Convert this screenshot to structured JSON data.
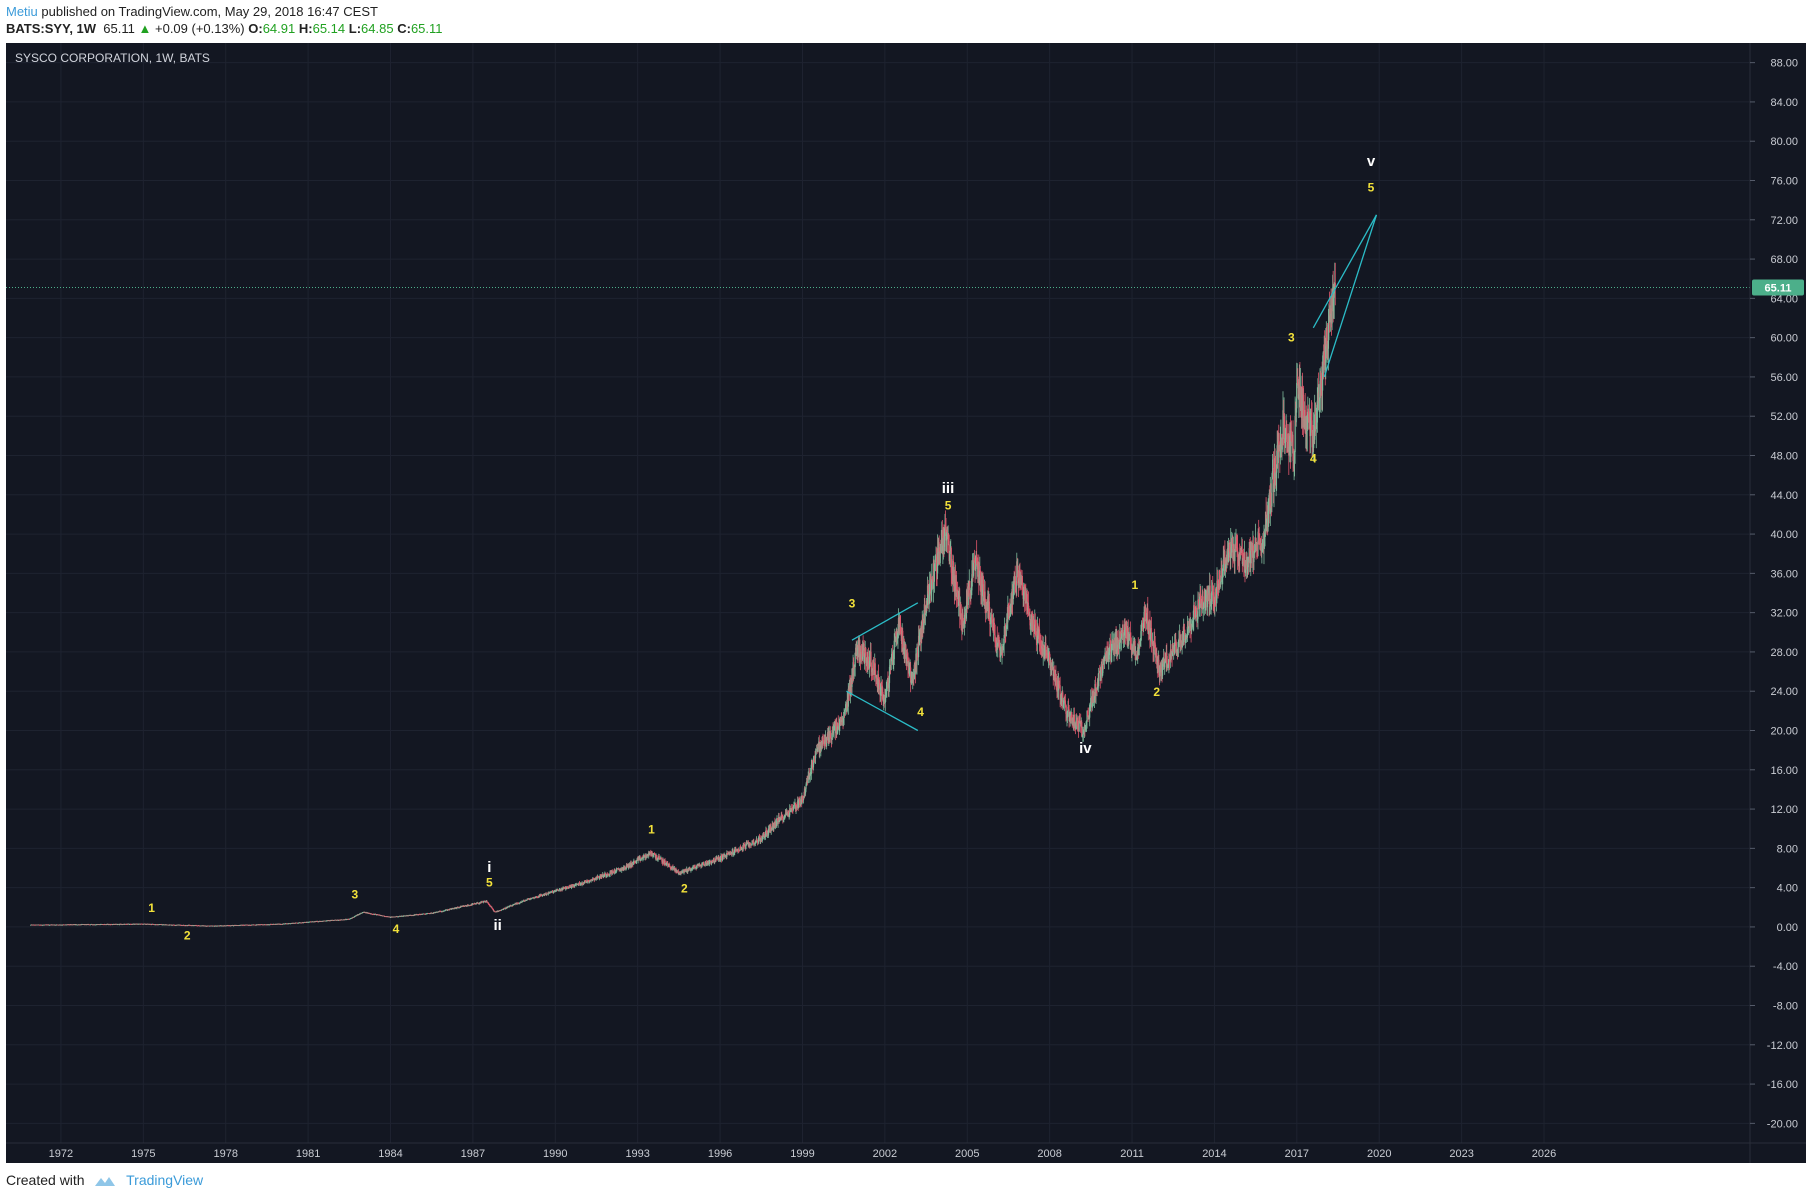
{
  "header": {
    "author": "Metiu",
    "published_text": "published on TradingView.com, May 29, 2018 16:47 CEST",
    "symbol": "BATS:SYY, 1W",
    "last": "65.11",
    "change": "+0.09 (+0.13%)",
    "open_label": "O:",
    "open": "64.91",
    "high_label": "H:",
    "high": "65.14",
    "low_label": "L:",
    "low": "64.85",
    "close_label": "C:",
    "close": "65.11"
  },
  "footer": {
    "created_with": "Created with",
    "brand": "TradingView"
  },
  "colors": {
    "background": "#131722",
    "grid": "#1e2330",
    "axis_text": "#c9ccd3",
    "up": "#7fb99a",
    "down": "#e0576b",
    "wave_minor": "#f2e13a",
    "wave_major": "#ffffff",
    "trendline": "#2bbcc7",
    "last_price": "#4caf8a"
  },
  "chart_data": {
    "type": "candlestick",
    "title": "SYSCO CORPORATION, 1W, BATS",
    "xlim": [
      1970.0,
      2033.5
    ],
    "ylim": [
      -22,
      90
    ],
    "y_ticks": [
      88,
      84,
      80,
      76,
      72,
      68,
      64,
      60,
      56,
      52,
      48,
      44,
      40,
      36,
      32,
      28,
      24,
      20,
      16,
      12,
      8,
      4,
      0,
      -4,
      -8,
      -12,
      -16,
      -20
    ],
    "x_ticks": [
      "1972",
      "1975",
      "1978",
      "1981",
      "1984",
      "1987",
      "1990",
      "1993",
      "1996",
      "1999",
      "2002",
      "2005",
      "2008",
      "2011",
      "2014",
      "2017",
      "2020",
      "2023",
      "2026"
    ],
    "last_price": 65.11,
    "last_price_label": "65.11",
    "price_path": [
      [
        1970.9,
        0.2
      ],
      [
        1975.0,
        0.3
      ],
      [
        1977.5,
        0.1
      ],
      [
        1980.0,
        0.3
      ],
      [
        1982.5,
        0.8
      ],
      [
        1983.0,
        1.5
      ],
      [
        1984.0,
        1.0
      ],
      [
        1985.5,
        1.4
      ],
      [
        1986.5,
        2.0
      ],
      [
        1987.5,
        2.6
      ],
      [
        1987.8,
        1.5
      ],
      [
        1989.0,
        2.8
      ],
      [
        1991.0,
        4.5
      ],
      [
        1992.5,
        6.0
      ],
      [
        1993.5,
        7.5
      ],
      [
        1994.5,
        5.5
      ],
      [
        1996.0,
        7.0
      ],
      [
        1997.5,
        9.0
      ],
      [
        1998.0,
        10.5
      ],
      [
        1999.0,
        13.0
      ],
      [
        1999.5,
        18.0
      ],
      [
        2000.5,
        21.0
      ],
      [
        2001.0,
        28.5
      ],
      [
        2001.5,
        27.0
      ],
      [
        2002.0,
        23.0
      ],
      [
        2002.5,
        31.0
      ],
      [
        2003.0,
        25.0
      ],
      [
        2003.5,
        33.0
      ],
      [
        2004.2,
        40.5
      ],
      [
        2004.8,
        31.0
      ],
      [
        2005.3,
        37.0
      ],
      [
        2006.2,
        28.0
      ],
      [
        2006.8,
        36.0
      ],
      [
        2007.5,
        30.0
      ],
      [
        2008.0,
        27.0
      ],
      [
        2008.6,
        22.0
      ],
      [
        2009.2,
        20.0
      ],
      [
        2010.0,
        27.0
      ],
      [
        2010.7,
        30.0
      ],
      [
        2011.2,
        28.0
      ],
      [
        2011.5,
        32.0
      ],
      [
        2012.0,
        26.0
      ],
      [
        2012.5,
        28.0
      ],
      [
        2013.5,
        33.0
      ],
      [
        2014.0,
        34.0
      ],
      [
        2014.6,
        39.0
      ],
      [
        2015.2,
        37.0
      ],
      [
        2015.8,
        40.0
      ],
      [
        2016.5,
        51.0
      ],
      [
        2016.9,
        48.0
      ],
      [
        2017.0,
        56.0
      ],
      [
        2017.3,
        52.0
      ],
      [
        2017.6,
        50.0
      ],
      [
        2017.9,
        56.0
      ],
      [
        2018.2,
        62.0
      ],
      [
        2018.4,
        65.11
      ]
    ],
    "wave_labels": [
      {
        "text": "1",
        "x": 1975.3,
        "y": 1.5,
        "level": "minor"
      },
      {
        "text": "2",
        "x": 1976.6,
        "y": -1.3,
        "level": "minor"
      },
      {
        "text": "3",
        "x": 1982.7,
        "y": 2.9,
        "level": "minor"
      },
      {
        "text": "4",
        "x": 1984.2,
        "y": -0.6,
        "level": "minor"
      },
      {
        "text": "5",
        "x": 1987.6,
        "y": 4.1,
        "level": "minor"
      },
      {
        "text": "i",
        "x": 1987.6,
        "y": 5.6,
        "level": "major"
      },
      {
        "text": "ii",
        "x": 1987.9,
        "y": -0.3,
        "level": "major"
      },
      {
        "text": "1",
        "x": 1993.5,
        "y": 9.5,
        "level": "minor"
      },
      {
        "text": "2",
        "x": 1994.7,
        "y": 3.5,
        "level": "minor"
      },
      {
        "text": "3",
        "x": 2000.8,
        "y": 32.5,
        "level": "minor"
      },
      {
        "text": "4",
        "x": 2003.3,
        "y": 21.5,
        "level": "minor"
      },
      {
        "text": "5",
        "x": 2004.3,
        "y": 42.5,
        "level": "minor"
      },
      {
        "text": "iii",
        "x": 2004.3,
        "y": 44.2,
        "level": "major"
      },
      {
        "text": "iv",
        "x": 2009.3,
        "y": 17.7,
        "level": "major"
      },
      {
        "text": "1",
        "x": 2011.1,
        "y": 34.4,
        "level": "minor"
      },
      {
        "text": "2",
        "x": 2011.9,
        "y": 23.5,
        "level": "minor"
      },
      {
        "text": "3",
        "x": 2016.8,
        "y": 59.6,
        "level": "minor"
      },
      {
        "text": "4",
        "x": 2017.6,
        "y": 47.3,
        "level": "minor"
      },
      {
        "text": "5",
        "x": 2019.7,
        "y": 74.9,
        "level": "minor"
      },
      {
        "text": "v",
        "x": 2019.7,
        "y": 77.5,
        "level": "major"
      }
    ],
    "trendlines": [
      {
        "from": [
          2000.8,
          29.2
        ],
        "to": [
          2003.2,
          33.0
        ]
      },
      {
        "from": [
          2000.6,
          24.0
        ],
        "to": [
          2003.2,
          20.0
        ]
      },
      {
        "from": [
          2017.6,
          61.0
        ],
        "to": [
          2019.9,
          72.5
        ]
      },
      {
        "from": [
          2018.0,
          56.0
        ],
        "to": [
          2019.9,
          72.5
        ]
      }
    ]
  }
}
